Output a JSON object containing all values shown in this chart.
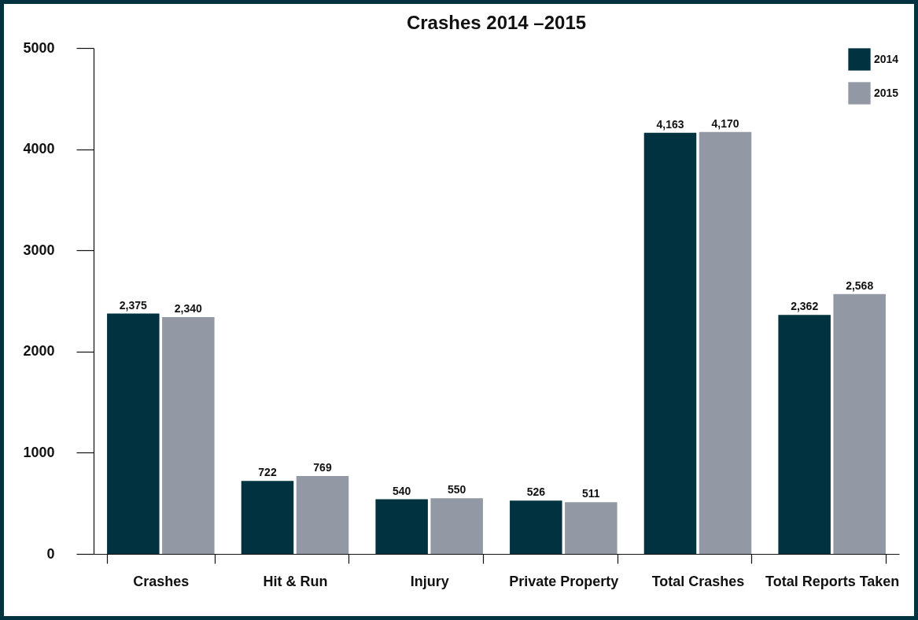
{
  "chart_data": {
    "type": "bar",
    "title": "Crashes 2014 –2015",
    "categories": [
      "Crashes",
      "Hit & Run",
      "Injury",
      "Private Property",
      "Total Crashes",
      "Total Reports Taken"
    ],
    "series": [
      {
        "name": "2014",
        "color": "#01323f",
        "values": [
          2375,
          722,
          540,
          526,
          4163,
          2362
        ],
        "value_labels": [
          "2,375",
          "722",
          "540",
          "526",
          "4,163",
          "2,362"
        ]
      },
      {
        "name": "2015",
        "color": "#9299a4",
        "values": [
          2340,
          769,
          550,
          511,
          4170,
          2568
        ],
        "value_labels": [
          "2,340",
          "769",
          "550",
          "511",
          "4,170",
          "2,568"
        ]
      }
    ],
    "ylim": [
      0,
      5000
    ],
    "yticks": [
      0,
      1000,
      2000,
      3000,
      4000,
      5000
    ],
    "legend": "top right"
  }
}
